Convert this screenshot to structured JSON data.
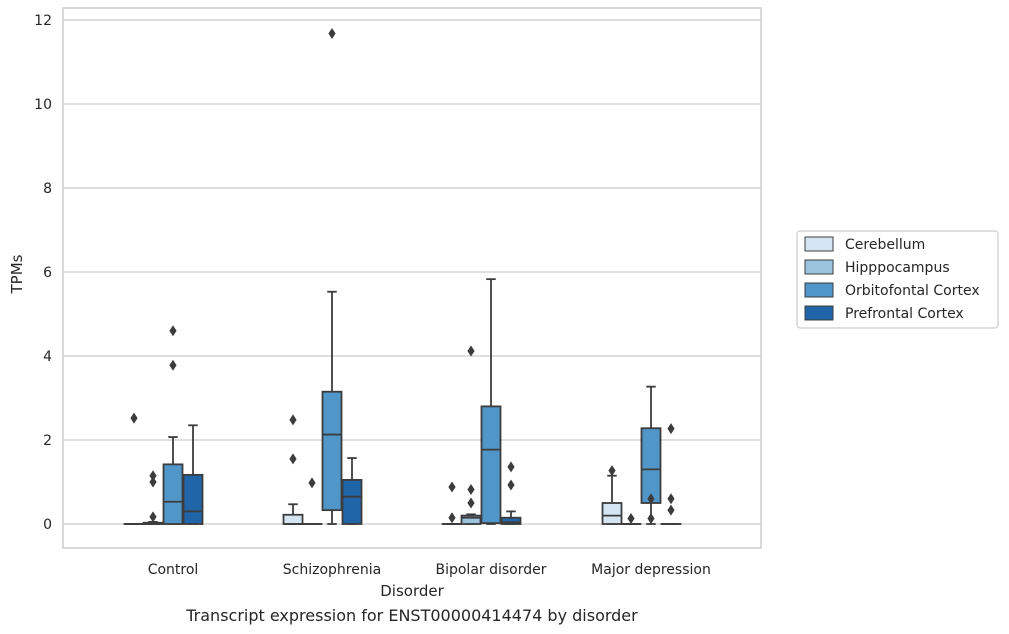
{
  "caption": "Transcript expression for ENST00000414474 by disorder",
  "colors": {
    "Cerebellum": "#d6e5f3",
    "Hipppocampus": "#9ac3de",
    "Orbitofontal Cortex": "#5096c8",
    "Prefrontal Cortex": "#1f65a8",
    "box_edge": "#3c3c3c",
    "grid": "#cccccc",
    "axes_edge": "#cccccc"
  },
  "chart_data": {
    "type": "box",
    "title": "",
    "xlabel": "Disorder",
    "ylabel": "TPMs",
    "ylim": [
      -0.57,
      12.3
    ],
    "yticks": [
      0,
      2,
      4,
      6,
      8,
      10,
      12
    ],
    "grid": "horizontal",
    "legend_position": "right",
    "categories": [
      "Control",
      "Schizophrenia",
      "Bipolar disorder",
      "Major depression"
    ],
    "series": [
      {
        "name": "Cerebellum",
        "boxes": [
          {
            "q1": 0,
            "median": 0,
            "q3": 0,
            "whisker_low": 0,
            "whisker_high": 0,
            "outliers": [
              2.52
            ]
          },
          {
            "q1": 0,
            "median": 0,
            "q3": 0.22,
            "whisker_low": 0,
            "whisker_high": 0.47,
            "outliers": [
              2.48,
              1.55
            ]
          },
          {
            "q1": 0,
            "median": 0,
            "q3": 0,
            "whisker_low": 0,
            "whisker_high": 0,
            "outliers": [
              0.88,
              0.15
            ]
          },
          {
            "q1": 0,
            "median": 0.2,
            "q3": 0.5,
            "whisker_low": 0,
            "whisker_high": 1.15,
            "outliers": [
              1.27
            ]
          }
        ]
      },
      {
        "name": "Hipppocampus",
        "boxes": [
          {
            "q1": 0,
            "median": 0,
            "q3": 0.03,
            "whisker_low": 0,
            "whisker_high": 0.05,
            "outliers": [
              1.15,
              1.0,
              0.17
            ]
          },
          {
            "q1": 0,
            "median": 0,
            "q3": 0,
            "whisker_low": 0,
            "whisker_high": 0,
            "outliers": [
              0.98
            ]
          },
          {
            "q1": 0,
            "median": 0.15,
            "q3": 0.2,
            "whisker_low": 0,
            "whisker_high": 0.23,
            "outliers": [
              4.12,
              0.82,
              0.5
            ]
          },
          {
            "q1": 0,
            "median": 0,
            "q3": 0,
            "whisker_low": 0,
            "whisker_high": 0,
            "outliers": [
              0.13
            ]
          }
        ]
      },
      {
        "name": "Orbitofontal Cortex",
        "boxes": [
          {
            "q1": 0,
            "median": 0.53,
            "q3": 1.42,
            "whisker_low": 0,
            "whisker_high": 2.07,
            "outliers": [
              4.6,
              3.78
            ]
          },
          {
            "q1": 0.33,
            "median": 2.13,
            "q3": 3.15,
            "whisker_low": 0,
            "whisker_high": 5.53,
            "outliers": [
              11.68
            ]
          },
          {
            "q1": 0.02,
            "median": 1.77,
            "q3": 2.8,
            "whisker_low": 0,
            "whisker_high": 5.83,
            "outliers": []
          },
          {
            "q1": 0.5,
            "median": 1.3,
            "q3": 2.28,
            "whisker_low": 0,
            "whisker_high": 3.27,
            "outliers": [
              0.6,
              0.13
            ]
          }
        ]
      },
      {
        "name": "Prefrontal Cortex",
        "boxes": [
          {
            "q1": 0,
            "median": 0.3,
            "q3": 1.17,
            "whisker_low": 0,
            "whisker_high": 2.35,
            "outliers": []
          },
          {
            "q1": 0,
            "median": 0.65,
            "q3": 1.05,
            "whisker_low": 0,
            "whisker_high": 1.57,
            "outliers": []
          },
          {
            "q1": 0,
            "median": 0.04,
            "q3": 0.15,
            "whisker_low": 0,
            "whisker_high": 0.3,
            "outliers": [
              1.36,
              0.93
            ]
          },
          {
            "q1": 0,
            "median": 0,
            "q3": 0,
            "whisker_low": 0,
            "whisker_high": 0,
            "outliers": [
              2.27,
              0.6,
              0.33
            ]
          }
        ]
      }
    ]
  }
}
